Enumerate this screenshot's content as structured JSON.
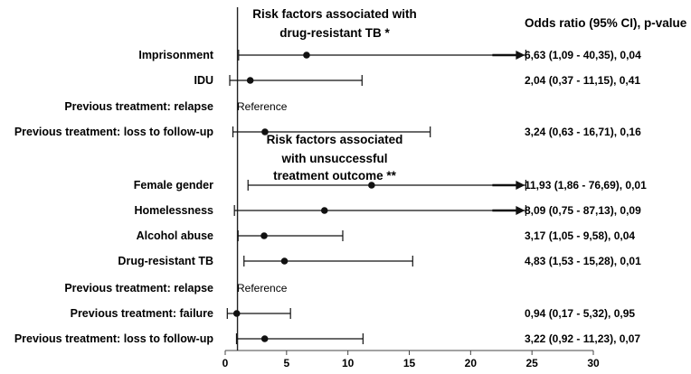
{
  "chart_data": {
    "type": "forest",
    "odds_header": "Odds ratio (95% CI), p-value",
    "sections": [
      {
        "title_lines": [
          "Risk factors associated with",
          "drug-resistant TB *"
        ]
      },
      {
        "title_lines": [
          "Risk factors associated",
          "with unsuccessful",
          "treatment outcome **"
        ]
      }
    ],
    "reference_text": "Reference",
    "rows": [
      {
        "label": "Imprisonment",
        "section": 0,
        "or": 6.63,
        "ci_low": 1.09,
        "ci_high": 40.35,
        "arrow": true,
        "text": "6,63 (1,09 - 40,35), 0,04"
      },
      {
        "label": "IDU",
        "section": 0,
        "or": 2.04,
        "ci_low": 0.37,
        "ci_high": 11.15,
        "arrow": false,
        "text": "2,04 (0,37 - 11,15), 0,41"
      },
      {
        "label": "Previous treatment: relapse",
        "section": 0,
        "reference": true
      },
      {
        "label": "Previous treatment: loss to follow-up",
        "section": 0,
        "or": 3.24,
        "ci_low": 0.63,
        "ci_high": 16.71,
        "arrow": false,
        "text": "3,24 (0,63 - 16,71), 0,16"
      },
      {
        "label": "Female gender",
        "section": 1,
        "or": 11.93,
        "ci_low": 1.86,
        "ci_high": 76.69,
        "arrow": true,
        "text": "11,93 (1,86 - 76,69), 0,01"
      },
      {
        "label": "Homelessness",
        "section": 1,
        "or": 8.09,
        "ci_low": 0.75,
        "ci_high": 87.13,
        "arrow": true,
        "text": "8,09 (0,75 - 87,13), 0,09"
      },
      {
        "label": "Alcohol abuse",
        "section": 1,
        "or": 3.17,
        "ci_low": 1.05,
        "ci_high": 9.58,
        "arrow": false,
        "text": "3,17 (1,05 - 9,58), 0,04"
      },
      {
        "label": "Drug-resistant TB",
        "section": 1,
        "or": 4.83,
        "ci_low": 1.53,
        "ci_high": 15.28,
        "arrow": false,
        "text": "4,83 (1,53 - 15,28), 0,01"
      },
      {
        "label": "Previous treatment: relapse",
        "section": 1,
        "reference": true
      },
      {
        "label": "Previous treatment: failure",
        "section": 1,
        "or": 0.94,
        "ci_low": 0.17,
        "ci_high": 5.32,
        "arrow": false,
        "text": "0,94 (0,17 - 5,32), 0,95"
      },
      {
        "label": "Previous treatment: loss to follow-up",
        "section": 1,
        "or": 3.22,
        "ci_low": 0.92,
        "ci_high": 11.23,
        "arrow": false,
        "text": "3,22 (0,92 - 11,23), 0,07"
      }
    ],
    "x_ticks": [
      0,
      5,
      10,
      15,
      20,
      25,
      30
    ],
    "xlim": [
      0,
      30
    ],
    "reference_line": 1,
    "arrow_limit": 24.5
  }
}
